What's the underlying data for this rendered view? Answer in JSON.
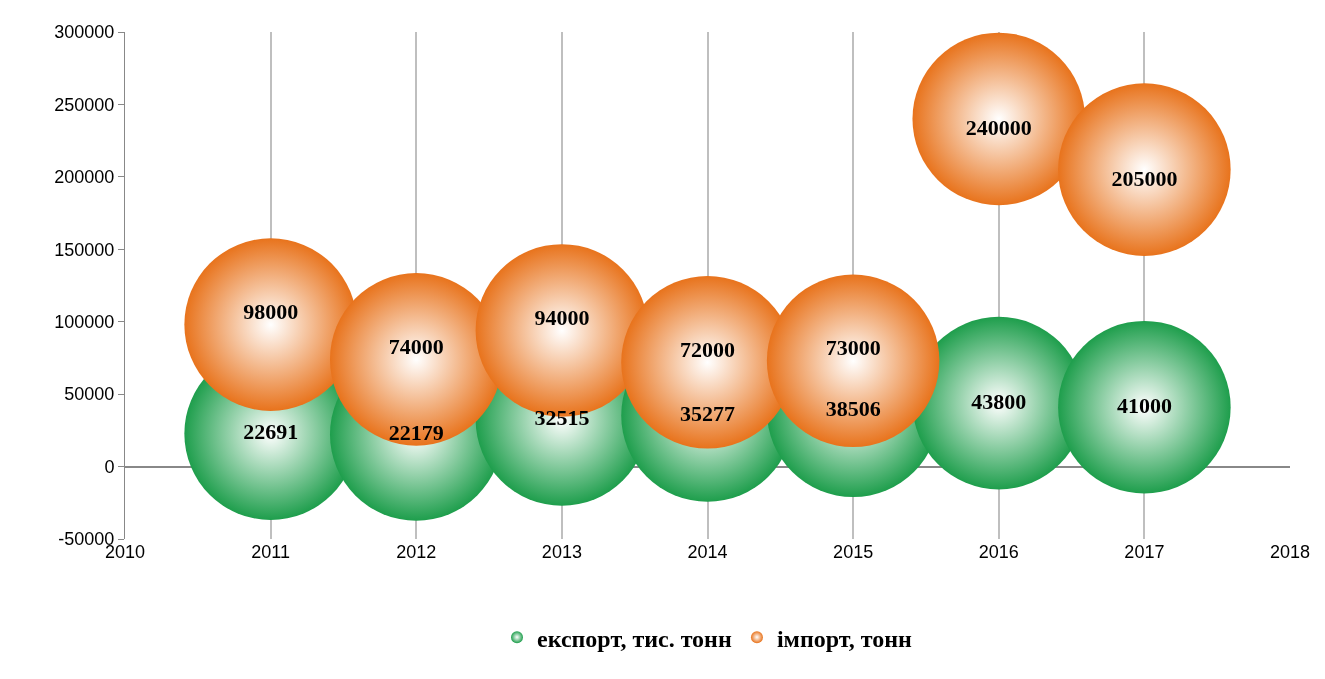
{
  "chart_data": {
    "type": "bubble",
    "x": [
      2011,
      2012,
      2013,
      2014,
      2015,
      2016,
      2017
    ],
    "series": [
      {
        "name": "експорт, тис. тонн",
        "color": "#1e9e4c",
        "values": [
          22691,
          22179,
          32515,
          35277,
          38506,
          43800,
          41000
        ],
        "sizes": [
          1,
          1,
          1,
          1,
          1,
          1,
          1
        ]
      },
      {
        "name": "імпорт, тонн",
        "color": "#e8731c",
        "values": [
          98000,
          74000,
          94000,
          72000,
          73000,
          240000,
          205000
        ],
        "sizes": [
          1,
          1,
          1,
          1,
          1,
          1,
          1
        ]
      }
    ],
    "xlim": [
      2010,
      2018
    ],
    "xticks": [
      2010,
      2011,
      2012,
      2013,
      2014,
      2015,
      2016,
      2017,
      2018
    ],
    "ylim": [
      -50000,
      300000
    ],
    "yticks": [
      -50000,
      0,
      50000,
      100000,
      150000,
      200000,
      250000,
      300000
    ],
    "grid": "x",
    "legend": "bottom",
    "data_labels": true
  }
}
